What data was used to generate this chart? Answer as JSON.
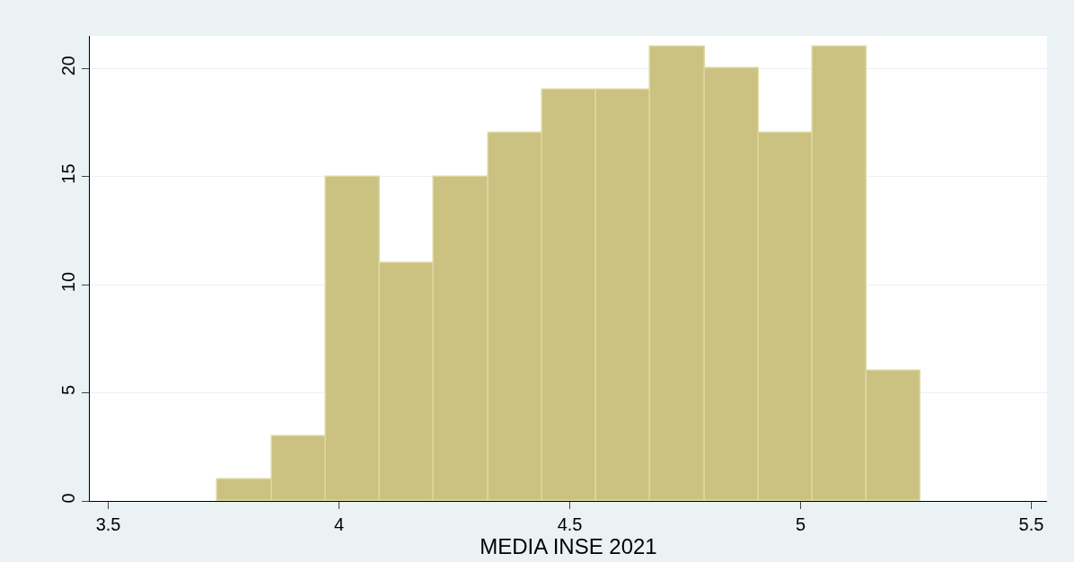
{
  "chart_data": {
    "type": "histogram",
    "xlabel": "MEDIA INSE 2021",
    "bins": [
      3.737,
      3.854,
      3.971,
      4.089,
      4.206,
      4.323,
      4.44,
      4.557,
      4.675,
      4.792,
      4.909,
      5.026,
      5.143,
      5.26
    ],
    "values": [
      1,
      3,
      15,
      11,
      15,
      17,
      19,
      19,
      21,
      20,
      17,
      21,
      6
    ],
    "color": "#cbc282",
    "xlim": [
      3.46,
      5.534
    ],
    "xticks": [
      3.5,
      4,
      4.5,
      5,
      5.5
    ],
    "ylim": [
      0,
      21.5
    ],
    "yticks": [
      0,
      5,
      10,
      15,
      20
    ],
    "grid": "y"
  }
}
